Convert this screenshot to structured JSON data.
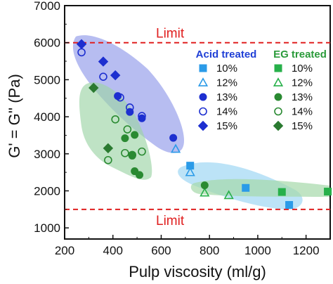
{
  "chart_data": {
    "type": "scatter",
    "xlabel": "Pulp viscosity (ml/g)",
    "ylabel": "G' = G'' (Pa)",
    "xlim": [
      200,
      1300
    ],
    "ylim": [
      700,
      7000
    ],
    "xticks": [
      200,
      400,
      600,
      800,
      1000,
      1200
    ],
    "yticks": [
      1000,
      2000,
      3000,
      4000,
      5000,
      6000,
      7000
    ],
    "limits": [
      {
        "label": "Limit",
        "value": 6000
      },
      {
        "label": "Limit",
        "value": 1500
      }
    ],
    "legend_groups": [
      {
        "title": "Acid treated",
        "color": "#1f3fd6"
      },
      {
        "title": "EG treated",
        "color": "#2a9a3a"
      }
    ],
    "series": [
      {
        "name": "10%",
        "group": "Acid treated",
        "marker": "square",
        "filled": true,
        "color": "#2b9be8",
        "points": [
          [
            720,
            2680
          ],
          [
            950,
            2080
          ],
          [
            1130,
            1620
          ]
        ]
      },
      {
        "name": "12%",
        "group": "Acid treated",
        "marker": "triangle",
        "filled": false,
        "color": "#2b9be8",
        "points": [
          [
            660,
            3130
          ],
          [
            720,
            2500
          ]
        ]
      },
      {
        "name": "13%",
        "group": "Acid treated",
        "marker": "circle",
        "filled": true,
        "color": "#1d2fd0",
        "points": [
          [
            420,
            4560
          ],
          [
            470,
            4130
          ],
          [
            520,
            3960
          ],
          [
            650,
            3430
          ]
        ]
      },
      {
        "name": "14%",
        "group": "Acid treated",
        "marker": "circle",
        "filled": false,
        "color": "#1d2fd0",
        "points": [
          [
            270,
            5740
          ],
          [
            360,
            5080
          ],
          [
            430,
            4520
          ],
          [
            470,
            4250
          ],
          [
            520,
            4020
          ]
        ]
      },
      {
        "name": "15%",
        "group": "Acid treated",
        "marker": "diamond",
        "filled": true,
        "color": "#1d2fd0",
        "points": [
          [
            270,
            5960
          ],
          [
            360,
            5490
          ],
          [
            410,
            5120
          ]
        ]
      },
      {
        "name": "10%",
        "group": "EG treated",
        "marker": "square",
        "filled": true,
        "color": "#27b04a",
        "points": [
          [
            1100,
            1970
          ],
          [
            1290,
            1980
          ]
        ]
      },
      {
        "name": "12%",
        "group": "EG treated",
        "marker": "triangle",
        "filled": false,
        "color": "#27b04a",
        "points": [
          [
            780,
            1950
          ],
          [
            880,
            1880
          ]
        ]
      },
      {
        "name": "13%",
        "group": "EG treated",
        "marker": "circle",
        "filled": true,
        "color": "#2a8a32",
        "points": [
          [
            450,
            3420
          ],
          [
            490,
            3510
          ],
          [
            480,
            2950
          ],
          [
            490,
            2530
          ],
          [
            510,
            2430
          ],
          [
            780,
            2150
          ]
        ]
      },
      {
        "name": "14%",
        "group": "EG treated",
        "marker": "circle",
        "filled": false,
        "color": "#2a8a32",
        "points": [
          [
            410,
            3930
          ],
          [
            460,
            3660
          ],
          [
            450,
            3020
          ],
          [
            480,
            2970
          ],
          [
            520,
            3060
          ],
          [
            380,
            2830
          ]
        ]
      },
      {
        "name": "15%",
        "group": "EG treated",
        "marker": "diamond",
        "filled": true,
        "color": "#2a7a30",
        "points": [
          [
            320,
            4780
          ],
          [
            380,
            3150
          ]
        ]
      }
    ]
  }
}
